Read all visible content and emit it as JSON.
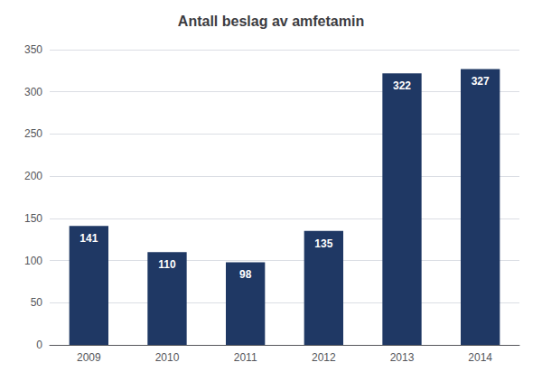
{
  "chart_data": {
    "type": "bar",
    "title": "Antall beslag av amfetamin",
    "categories": [
      "2009",
      "2010",
      "2011",
      "2012",
      "2013",
      "2014"
    ],
    "values": [
      141,
      110,
      98,
      135,
      322,
      327
    ],
    "color": "#1F3864",
    "ylim": [
      0,
      350
    ],
    "yticks": [
      0,
      50,
      100,
      150,
      200,
      250,
      300,
      350
    ],
    "grid": true,
    "data_labels": true
  }
}
